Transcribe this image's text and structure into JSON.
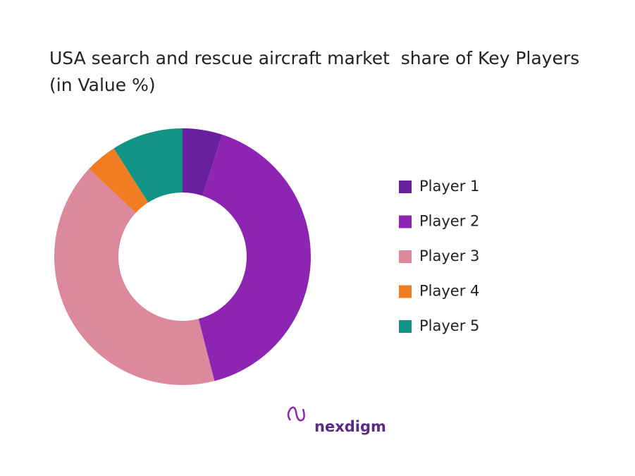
{
  "chart_data": {
    "type": "donut",
    "title": "USA search and rescue aircraft market  share of Key Players (in Value %)",
    "categories": [
      "Player 1",
      "Player 2",
      "Player 3",
      "Player 4",
      "Player 5"
    ],
    "values": [
      5,
      41,
      41,
      4,
      9
    ],
    "colors": [
      "#6a1f9e",
      "#8e24b2",
      "#dc889d",
      "#f07d22",
      "#119486"
    ],
    "brand": "nexdigm"
  }
}
